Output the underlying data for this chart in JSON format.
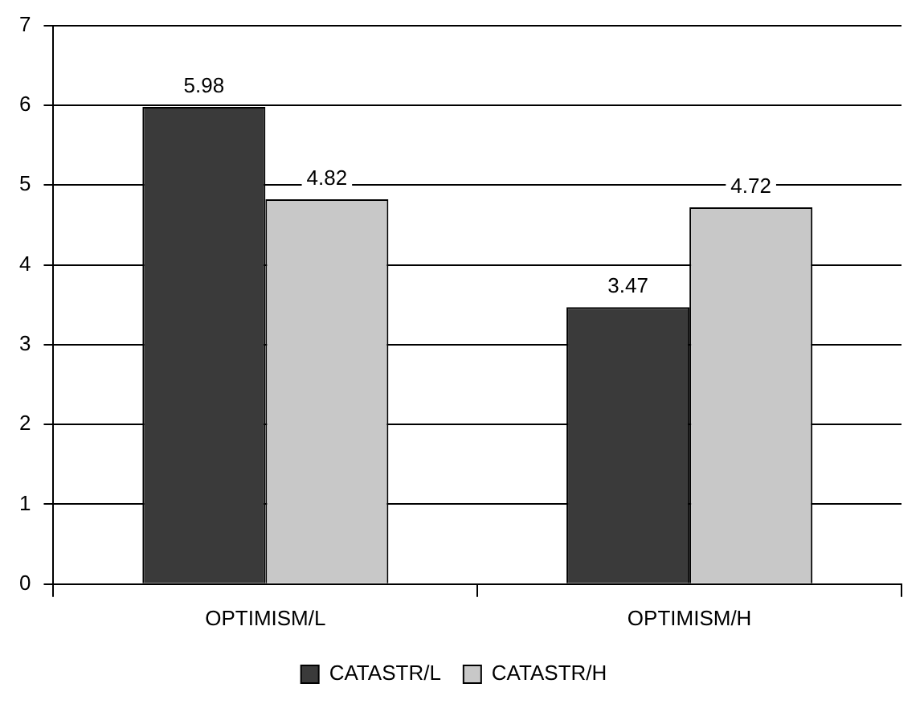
{
  "chart_data": {
    "type": "bar",
    "categories": [
      "OPTIMISM/L",
      "OPTIMISM/H"
    ],
    "series": [
      {
        "name": "CATASTR/L",
        "color": "#3a3a3a",
        "values": [
          5.98,
          3.47
        ]
      },
      {
        "name": "CATASTR/H",
        "color": "#c8c8c8",
        "values": [
          4.82,
          4.72
        ]
      }
    ],
    "ylim": [
      0,
      7
    ],
    "yticks": [
      0,
      1,
      2,
      3,
      4,
      5,
      6,
      7
    ],
    "grid": "y",
    "legend": "bottom",
    "data_labels": true
  }
}
